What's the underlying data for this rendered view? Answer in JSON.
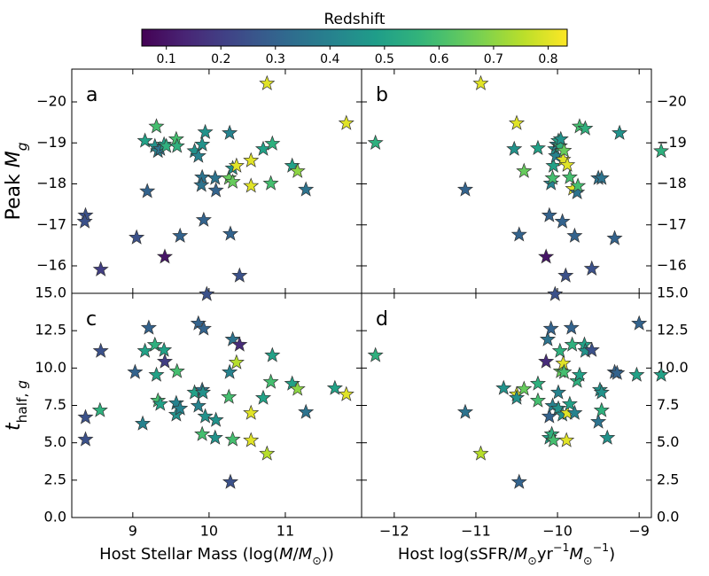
{
  "colorbar": {
    "label": "Redshift",
    "colormap": "viridis",
    "clim": [
      0.055,
      0.835
    ],
    "ticks": [
      0.1,
      0.2,
      0.3,
      0.4,
      0.5,
      0.6,
      0.7,
      0.8
    ]
  },
  "chart_data": [
    {
      "type": "scatter",
      "annotation": "a",
      "xlim": [
        8.2,
        12.0
      ],
      "ylim": [
        -15.33,
        -20.8
      ],
      "xticks": [
        9,
        10,
        11
      ],
      "yticks": [
        {
          "value": -20,
          "label": "−20"
        },
        {
          "value": -19,
          "label": "−19"
        },
        {
          "value": -18,
          "label": "−18"
        },
        {
          "value": -17,
          "label": "−17"
        },
        {
          "value": -16,
          "label": "−16"
        }
      ],
      "ytick_side": "left",
      "ylabel": [
        {
          "text": "Peak "
        },
        {
          "text": "M",
          "style": "italic"
        },
        {
          "text": "g",
          "style": "italic-sub"
        }
      ],
      "x": [
        8.38,
        8.37,
        8.58,
        9.05,
        9.16,
        9.19,
        9.31,
        9.29,
        9.33,
        9.36,
        9.41,
        9.42,
        9.44,
        9.57,
        9.58,
        9.62,
        9.81,
        9.86,
        9.91,
        9.91,
        9.95,
        9.93,
        9.9,
        10.08,
        10.09,
        10.27,
        10.26,
        10.31,
        10.28,
        10.31,
        10.36,
        10.4,
        10.55,
        10.55,
        10.71,
        10.76,
        10.81,
        10.83,
        11.09,
        11.16,
        11.27,
        11.8
      ],
      "y": [
        -17.23,
        -17.08,
        -15.91,
        -16.69,
        -19.05,
        -17.82,
        -19.4,
        -18.92,
        -18.8,
        -18.85,
        -18.96,
        -16.22,
        -18.92,
        -19.09,
        -18.92,
        -16.73,
        -18.8,
        -18.68,
        -18.16,
        -18.96,
        -19.26,
        -17.12,
        -17.97,
        -18.14,
        -17.84,
        -19.24,
        -18.14,
        -18.05,
        -16.78,
        -18.38,
        -18.44,
        -15.76,
        -18.57,
        -17.95,
        -18.85,
        -20.45,
        -18.01,
        -18.98,
        -18.44,
        -18.31,
        -17.86,
        -19.48
      ],
      "z": [
        0.25,
        0.25,
        0.2,
        0.25,
        0.5,
        0.3,
        0.6,
        0.45,
        0.4,
        0.35,
        0.5,
        0.1,
        0.55,
        0.6,
        0.55,
        0.3,
        0.45,
        0.4,
        0.35,
        0.45,
        0.45,
        0.3,
        0.35,
        0.35,
        0.3,
        0.4,
        0.65,
        0.65,
        0.3,
        0.45,
        0.8,
        0.25,
        0.8,
        0.8,
        0.5,
        0.8,
        0.6,
        0.55,
        0.5,
        0.7,
        0.35,
        0.8
      ]
    },
    {
      "type": "scatter",
      "annotation": "b",
      "xlim": [
        -12.4,
        -8.85
      ],
      "ylim": [
        -15.33,
        -20.8
      ],
      "xticks": [
        {
          "value": -12,
          "label": "−12"
        },
        {
          "value": -11,
          "label": "−11"
        },
        {
          "value": -10,
          "label": "−10"
        },
        {
          "value": -9,
          "label": "−9"
        }
      ],
      "yticks": [
        {
          "value": -20,
          "label": "−20"
        },
        {
          "value": -19,
          "label": "−19"
        },
        {
          "value": -18,
          "label": "−18"
        },
        {
          "value": -17,
          "label": "−17"
        },
        {
          "value": -16,
          "label": "−16"
        }
      ],
      "ytick_side": "right",
      "x": [
        -12.23,
        -11.13,
        -10.5,
        -10.94,
        -10.53,
        -10.47,
        -10.41,
        -10.24,
        -10.14,
        -10.1,
        -10.08,
        -10.06,
        -10.05,
        -10.03,
        -10.01,
        -10.02,
        -9.99,
        -9.97,
        -9.96,
        -9.94,
        -9.93,
        -9.92,
        -9.9,
        -9.88,
        -9.85,
        -9.81,
        -9.79,
        -9.76,
        -9.75,
        -9.73,
        -9.66,
        -9.58,
        -9.5,
        -9.46,
        -9.3,
        -9.24,
        -8.73
      ],
      "y": [
        -19.0,
        -17.86,
        -19.48,
        -20.45,
        -18.85,
        -16.76,
        -18.31,
        -18.87,
        -16.22,
        -17.23,
        -18.01,
        -18.14,
        -18.44,
        -18.85,
        -18.96,
        -18.68,
        -19.05,
        -18.92,
        -19.09,
        -17.08,
        -18.59,
        -18.81,
        -15.76,
        -18.46,
        -18.16,
        -17.88,
        -16.73,
        -17.79,
        -17.95,
        -19.4,
        -19.35,
        -15.93,
        -18.14,
        -18.14,
        -16.67,
        -19.24,
        -18.8
      ],
      "z": [
        0.55,
        0.3,
        0.8,
        0.8,
        0.45,
        0.3,
        0.65,
        0.5,
        0.1,
        0.3,
        0.4,
        0.6,
        0.5,
        0.45,
        0.4,
        0.4,
        0.5,
        0.55,
        0.45,
        0.3,
        0.8,
        0.65,
        0.25,
        0.8,
        0.6,
        0.8,
        0.3,
        0.35,
        0.6,
        0.6,
        0.55,
        0.25,
        0.35,
        0.35,
        0.3,
        0.45,
        0.55
      ]
    },
    {
      "type": "scatter",
      "annotation": "c",
      "xlim": [
        8.2,
        12.0
      ],
      "ylim": [
        0,
        15
      ],
      "xticks": [
        9,
        10,
        11
      ],
      "yticks": [
        {
          "value": 0,
          "label": "0.0"
        },
        {
          "value": 2.5,
          "label": "2.5"
        },
        {
          "value": 5,
          "label": "5.0"
        },
        {
          "value": 7.5,
          "label": "7.5"
        },
        {
          "value": 10,
          "label": "10.0"
        },
        {
          "value": 12.5,
          "label": "12.5"
        },
        {
          "value": 15,
          "label": "15.0"
        }
      ],
      "ytick_side": "left",
      "xlabel": [
        {
          "text": "Host Stellar Mass (log("
        },
        {
          "text": "M",
          "style": "italic"
        },
        {
          "text": "/"
        },
        {
          "text": "M",
          "style": "italic"
        },
        {
          "text": "⊙",
          "style": "sub"
        },
        {
          "text": "))"
        }
      ],
      "ylabel": [
        {
          "text": "t",
          "style": "italic"
        },
        {
          "text": "half,",
          "style": "sub"
        },
        {
          "text": " g",
          "style": "italic-sub"
        }
      ],
      "x": [
        8.38,
        8.38,
        8.58,
        8.57,
        9.03,
        9.13,
        9.16,
        9.21,
        9.29,
        9.31,
        9.33,
        9.36,
        9.41,
        9.42,
        9.57,
        9.58,
        9.57,
        9.62,
        9.81,
        9.86,
        9.86,
        9.91,
        9.91,
        9.93,
        9.95,
        9.97,
        9.92,
        10.08,
        10.09,
        10.26,
        10.31,
        10.27,
        10.28,
        10.31,
        10.36,
        10.4,
        10.55,
        10.55,
        10.71,
        10.76,
        10.81,
        10.83,
        11.09,
        11.16,
        11.27,
        11.65,
        11.8
      ],
      "y": [
        5.22,
        6.7,
        11.14,
        7.17,
        9.72,
        6.28,
        11.14,
        12.69,
        11.55,
        9.54,
        7.82,
        7.59,
        11.2,
        10.43,
        6.88,
        9.78,
        7.65,
        7.29,
        8.36,
        7.47,
        12.98,
        8.54,
        5.57,
        12.63,
        6.76,
        14.94,
        8.36,
        5.33,
        6.52,
        8.06,
        11.91,
        9.72,
        2.37,
        5.22,
        10.37,
        11.56,
        6.99,
        5.16,
        8.0,
        4.27,
        9.07,
        10.85,
        8.95,
        8.6,
        7.05,
        8.65,
        8.24
      ],
      "z": [
        0.25,
        0.25,
        0.25,
        0.55,
        0.3,
        0.4,
        0.5,
        0.3,
        0.55,
        0.5,
        0.6,
        0.5,
        0.5,
        0.2,
        0.45,
        0.6,
        0.4,
        0.4,
        0.5,
        0.4,
        0.3,
        0.35,
        0.6,
        0.3,
        0.45,
        0.25,
        0.45,
        0.45,
        0.45,
        0.6,
        0.35,
        0.4,
        0.25,
        0.6,
        0.75,
        0.15,
        0.8,
        0.8,
        0.5,
        0.75,
        0.6,
        0.5,
        0.5,
        0.7,
        0.35,
        0.5,
        0.8
      ]
    },
    {
      "type": "scatter",
      "annotation": "d",
      "xlim": [
        -12.4,
        -8.85
      ],
      "ylim": [
        0,
        15
      ],
      "xticks": [
        {
          "value": -12,
          "label": "−12"
        },
        {
          "value": -11,
          "label": "−11"
        },
        {
          "value": -10,
          "label": "−10"
        },
        {
          "value": -9,
          "label": "−9"
        }
      ],
      "yticks": [
        {
          "value": 0,
          "label": "0.0"
        },
        {
          "value": 2.5,
          "label": "2.5"
        },
        {
          "value": 5,
          "label": "5.0"
        },
        {
          "value": 7.5,
          "label": "7.5"
        },
        {
          "value": 10,
          "label": "10.0"
        },
        {
          "value": 12.5,
          "label": "12.5"
        },
        {
          "value": 15,
          "label": "15.0"
        }
      ],
      "ytick_side": "right",
      "xlabel": [
        {
          "text": "Host log(sSFR/"
        },
        {
          "text": "M",
          "style": "italic"
        },
        {
          "text": "⊙",
          "style": "sub"
        },
        {
          "text": "yr"
        },
        {
          "text": "−1",
          "style": "sup"
        },
        {
          "text": "M",
          "style": "italic"
        },
        {
          "text": "⊙",
          "style": "sub"
        },
        {
          "text": "−1",
          "style": "sup"
        },
        {
          "text": ")"
        }
      ],
      "x": [
        -12.23,
        -11.13,
        -10.94,
        -10.66,
        -10.5,
        -10.5,
        -10.47,
        -10.41,
        -10.24,
        -10.24,
        -10.14,
        -10.12,
        -10.1,
        -10.08,
        -10.1,
        -10.07,
        -10.06,
        -10.05,
        -10.03,
        -9.99,
        -9.99,
        -9.97,
        -9.96,
        -9.94,
        -9.93,
        -9.92,
        -9.89,
        -9.88,
        -9.85,
        -9.83,
        -9.82,
        -9.79,
        -9.76,
        -9.73,
        -9.67,
        -9.66,
        -9.58,
        -9.5,
        -9.48,
        -9.46,
        -9.46,
        -9.39,
        -9.3,
        -9.27,
        -9.03,
        -9.0,
        -8.73
      ],
      "y": [
        10.85,
        7.05,
        4.27,
        8.65,
        8.24,
        8.0,
        2.37,
        8.6,
        8.95,
        7.82,
        10.43,
        11.91,
        6.76,
        12.63,
        5.33,
        5.57,
        7.47,
        5.16,
        14.94,
        7.29,
        8.36,
        11.14,
        9.78,
        6.88,
        10.31,
        9.72,
        5.16,
        6.99,
        7.59,
        12.69,
        11.56,
        6.99,
        9.13,
        9.54,
        11.56,
        11.14,
        11.2,
        6.4,
        8.54,
        8.36,
        7.17,
        5.33,
        9.72,
        9.66,
        9.54,
        12.98,
        9.54
      ],
      "z": [
        0.55,
        0.35,
        0.75,
        0.45,
        0.8,
        0.45,
        0.3,
        0.65,
        0.55,
        0.6,
        0.15,
        0.35,
        0.3,
        0.3,
        0.5,
        0.55,
        0.4,
        0.6,
        0.25,
        0.45,
        0.4,
        0.55,
        0.65,
        0.45,
        0.8,
        0.6,
        0.8,
        0.8,
        0.5,
        0.3,
        0.55,
        0.4,
        0.55,
        0.5,
        0.5,
        0.45,
        0.25,
        0.35,
        0.45,
        0.45,
        0.55,
        0.45,
        0.3,
        0.3,
        0.5,
        0.3,
        0.5
      ]
    }
  ]
}
